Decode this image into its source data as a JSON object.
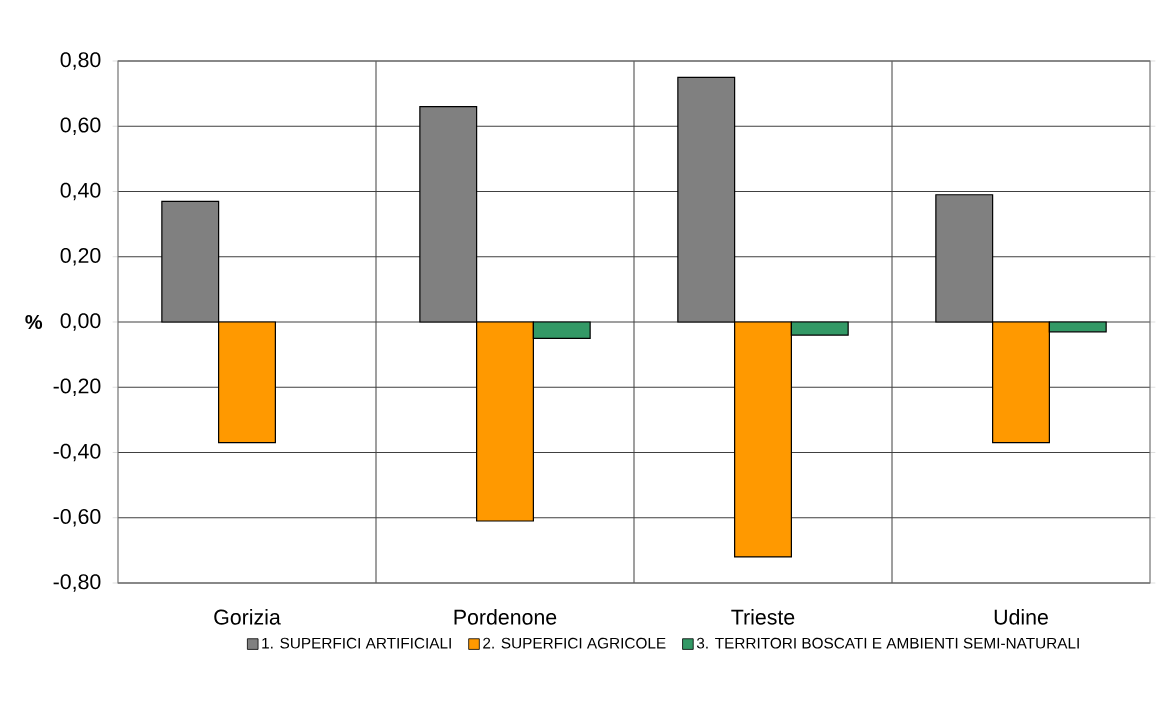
{
  "chart_data": {
    "type": "bar",
    "categories": [
      "Gorizia",
      "Pordenone",
      "Trieste",
      "Udine"
    ],
    "series": [
      {
        "name": "1. SUPERFICI ARTIFICIALI",
        "color": "#808080",
        "values": [
          0.37,
          0.66,
          0.75,
          0.39
        ]
      },
      {
        "name": "2. SUPERFICI AGRICOLE",
        "color": "#ff9900",
        "values": [
          -0.37,
          -0.61,
          -0.72,
          -0.37
        ]
      },
      {
        "name": "3. TERRITORI BOSCATI E AMBIENTI SEMI-NATURALI",
        "color": "#339966",
        "values": [
          null,
          -0.05,
          -0.04,
          -0.03
        ]
      }
    ],
    "ylabel": "%",
    "ylim": [
      -0.8,
      0.8
    ],
    "yticks": [
      {
        "value": -0.8,
        "label": "-0,80"
      },
      {
        "value": -0.6,
        "label": "-0,60"
      },
      {
        "value": -0.4,
        "label": "-0,40"
      },
      {
        "value": -0.2,
        "label": "-0,20"
      },
      {
        "value": 0,
        "label": "0,00"
      },
      {
        "value": 0.2,
        "label": "0,20"
      },
      {
        "value": 0.4,
        "label": "0,40"
      },
      {
        "value": 0.6,
        "label": "0,60"
      },
      {
        "value": 0.8,
        "label": "0,80"
      }
    ],
    "grid": true,
    "legend": "bottom"
  }
}
